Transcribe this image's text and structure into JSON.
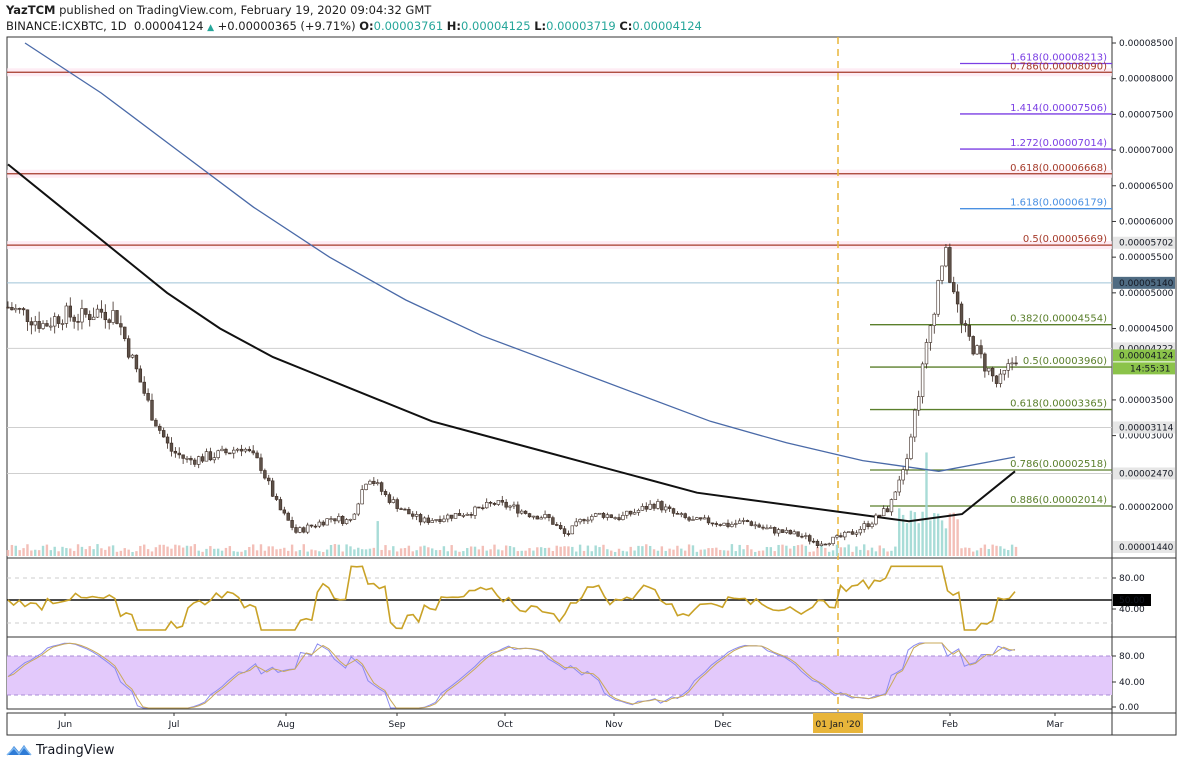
{
  "header": {
    "author": "YazTCM",
    "published_text": "published on TradingView.com, February 19, 2020 09:04:32 GMT",
    "symbol": "BINANCE:ICXBTC, 1D",
    "last_price": "0.00004124",
    "change": "+0.00000365 (+9.71%)",
    "open_label": "O:",
    "open": "0.00003761",
    "high_label": "H:",
    "high": "0.00004125",
    "low_label": "L:",
    "low": "0.00003719",
    "close_label": "C:",
    "close": "0.00004124"
  },
  "branding": {
    "logo_text": "TradingView"
  },
  "colors": {
    "bull": "#26a69a",
    "bear": "#3b2a22",
    "candle_body": "#5d5149",
    "ma_black": "#111111",
    "ma_blue": "#4a6aa8",
    "rsi": "#c9a227",
    "stoch_k": "#8b8bf0",
    "stoch_d": "#c9a95a",
    "stoch_band": "#e3c9fb",
    "fib_green": "#5a7f2b",
    "fib_red": "#a53a2a",
    "fib_purple": "#7b3fe4",
    "fib_blue": "#4a90e2",
    "date_marker": "#e8b53a",
    "price_label_current": "#8bc34a",
    "price_label_blue": "#4f6b82"
  },
  "chart_data": {
    "type": "candlestick",
    "title": "BINANCE:ICXBTC, 1D",
    "xlabel": "",
    "ylabel": "Price (BTC)",
    "x_ticks": [
      "Jun",
      "Jul",
      "Aug",
      "Sep",
      "Oct",
      "Nov",
      "Dec",
      "01 Jan '20",
      "Feb",
      "Mar"
    ],
    "y_ticks": [
      "0.00008500",
      "0.00008000",
      "0.00007500",
      "0.00007000",
      "0.00006500",
      "0.00006000",
      "0.00005500",
      "0.00005000",
      "0.00004500",
      "0.00003500",
      "0.00003000",
      "0.00002000"
    ],
    "ylim": [
      1.4e-05,
      8.5e-05
    ],
    "price_labels": [
      {
        "value": "0.00005702",
        "style": "grey"
      },
      {
        "value": "0.00005140",
        "style": "blue"
      },
      {
        "value": "0.00004222",
        "style": "grey"
      },
      {
        "value": "0.00004124",
        "style": "current"
      },
      {
        "value": "14:55:31",
        "style": "countdown"
      },
      {
        "value": "0.00003114",
        "style": "grey"
      },
      {
        "value": "0.00002470",
        "style": "grey"
      },
      {
        "value": "0.00001440",
        "style": "grey"
      }
    ],
    "fib_levels": [
      {
        "label": "1.618(0.00008213)",
        "price": 8.213e-05,
        "color": "purple"
      },
      {
        "label": "0.786(0.00008090)",
        "price": 8.09e-05,
        "color": "red"
      },
      {
        "label": "1.414(0.00007506)",
        "price": 7.506e-05,
        "color": "purple"
      },
      {
        "label": "1.272(0.00007014)",
        "price": 7.014e-05,
        "color": "purple"
      },
      {
        "label": "0.618(0.00006668)",
        "price": 6.668e-05,
        "color": "red"
      },
      {
        "label": "1.618(0.00006179)",
        "price": 6.179e-05,
        "color": "blue"
      },
      {
        "label": "0.5(0.00005669)",
        "price": 5.669e-05,
        "color": "red"
      },
      {
        "label": "0.382(0.00004554)",
        "price": 4.554e-05,
        "color": "green"
      },
      {
        "label": "0.5(0.00003960)",
        "price": 3.96e-05,
        "color": "green"
      },
      {
        "label": "0.618(0.00003365)",
        "price": 3.365e-05,
        "color": "green"
      },
      {
        "label": "0.786(0.00002518)",
        "price": 2.518e-05,
        "color": "green"
      },
      {
        "label": "0.886(0.00002014)",
        "price": 2.014e-05,
        "color": "green"
      }
    ],
    "horizontal_lines": [
      5.14e-05,
      4.222e-05,
      3.114e-05,
      2.47e-05
    ],
    "series": [
      {
        "name": "Price (approx. closes, ~weekly)",
        "values": [
          4.8e-05,
          4.7e-05,
          4.55e-05,
          4.7e-05,
          4.65e-05,
          4.75e-05,
          4.7e-05,
          4e-05,
          3.3e-05,
          2.8e-05,
          2.65e-05,
          2.7e-05,
          2.75e-05,
          2.85e-05,
          2.6e-05,
          2e-05,
          1.65e-05,
          1.75e-05,
          1.85e-05,
          1.8e-05,
          2.45e-05,
          2.15e-05,
          1.95e-05,
          1.8e-05,
          1.85e-05,
          1.9e-05,
          1.95e-05,
          2.05e-05,
          2e-05,
          1.9e-05,
          1.85e-05,
          1.6e-05,
          1.85e-05,
          1.9e-05,
          1.85e-05,
          1.95e-05,
          2.05e-05,
          1.9e-05,
          1.8e-05,
          1.8e-05,
          1.75e-05,
          1.8e-05,
          1.7e-05,
          1.65e-05,
          1.6e-05,
          1.5e-05,
          1.55e-05,
          1.65e-05,
          1.8e-05,
          2e-05,
          2.8e-05,
          4.2e-05,
          5.6e-05,
          4.5e-05,
          4.1e-05,
          3.7e-05,
          4.12e-05
        ]
      },
      {
        "name": "MA (black)",
        "values": [
          6.8e-05,
          6.2e-05,
          5.6e-05,
          5e-05,
          4.5e-05,
          4.1e-05,
          3.8e-05,
          3.5e-05,
          3.2e-05,
          3e-05,
          2.8e-05,
          2.6e-05,
          2.4e-05,
          2.2e-05,
          2.1e-05,
          2e-05,
          1.9e-05,
          1.8e-05,
          1.9e-05,
          2.5e-05
        ]
      },
      {
        "name": "MA (blue)",
        "values": [
          8.5e-05,
          7.8e-05,
          7e-05,
          6.2e-05,
          5.5e-05,
          4.9e-05,
          4.4e-05,
          4e-05,
          3.6e-05,
          3.2e-05,
          2.9e-05,
          2.65e-05,
          2.5e-05,
          2.7e-05
        ]
      },
      {
        "name": "RSI",
        "ylim": [
          0,
          100
        ],
        "levels": [
          80,
          50,
          40
        ],
        "current_label": "50.00",
        "y_ticks": [
          "80.00",
          "50.00",
          "40.00"
        ]
      },
      {
        "name": "Stoch RSI",
        "ylim": [
          0,
          100
        ],
        "band": [
          20,
          80
        ],
        "y_ticks": [
          "80.00",
          "40.00",
          "0.00"
        ]
      }
    ]
  }
}
